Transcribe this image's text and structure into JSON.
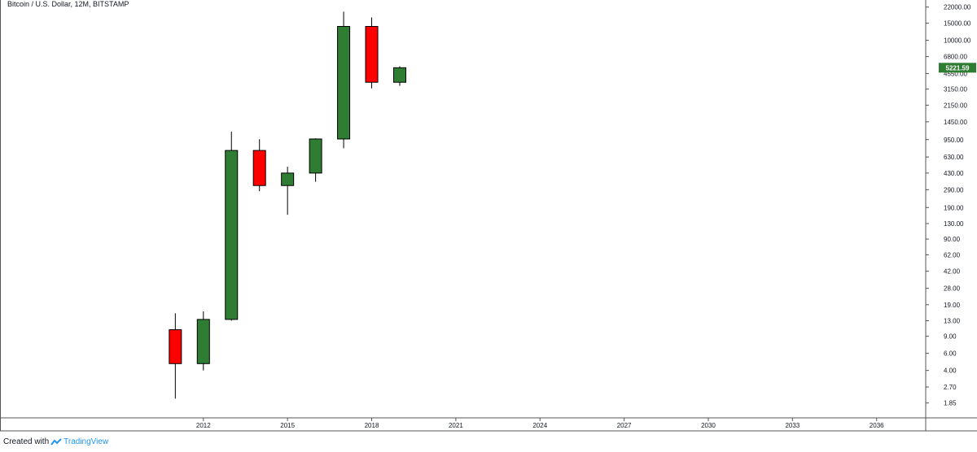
{
  "chart_data": {
    "type": "candlestick",
    "title": "Bitcoin / U.S. Dollar, 12M, BITSTAMP",
    "y_scale": "log",
    "ylim": [
      1.3,
      26000
    ],
    "xlim": [
      2004.75,
      2037.75
    ],
    "y_ticks": [
      "22000.00",
      "15000.00",
      "10000.00",
      "6800.00",
      "4550.00",
      "3150.00",
      "2150.00",
      "1450.00",
      "950.00",
      "630.00",
      "430.00",
      "290.00",
      "190.00",
      "130.00",
      "90.00",
      "62.00",
      "42.00",
      "28.00",
      "19.00",
      "13.00",
      "9.00",
      "6.00",
      "4.00",
      "2.70",
      "1.85"
    ],
    "x_ticks": [
      "2012",
      "2015",
      "2018",
      "2021",
      "2024",
      "2027",
      "2030",
      "2033",
      "2036"
    ],
    "last_price": "5221.59",
    "colors": {
      "up": "#2e7d32",
      "down": "#ff0000",
      "price_label": "#2e7d32",
      "brand": "#2196f3"
    },
    "candles": [
      {
        "year": 2011,
        "open": 10.5,
        "high": 15.5,
        "low": 2.05,
        "close": 4.7
      },
      {
        "year": 2012,
        "open": 4.7,
        "high": 16.2,
        "low": 4.0,
        "close": 13.4
      },
      {
        "year": 2013,
        "open": 13.4,
        "high": 1150,
        "low": 13.0,
        "close": 735
      },
      {
        "year": 2014,
        "open": 735,
        "high": 960,
        "low": 280,
        "close": 320
      },
      {
        "year": 2015,
        "open": 320,
        "high": 500,
        "low": 160,
        "close": 430
      },
      {
        "year": 2016,
        "open": 430,
        "high": 980,
        "low": 350,
        "close": 965
      },
      {
        "year": 2017,
        "open": 965,
        "high": 19700,
        "low": 775,
        "close": 13900
      },
      {
        "year": 2018,
        "open": 13900,
        "high": 17200,
        "low": 3200,
        "close": 3700
      },
      {
        "year": 2019,
        "open": 3700,
        "high": 5400,
        "low": 3400,
        "close": 5221.59
      }
    ]
  },
  "footer": {
    "created_with": "Created with",
    "brand": "TradingView"
  }
}
